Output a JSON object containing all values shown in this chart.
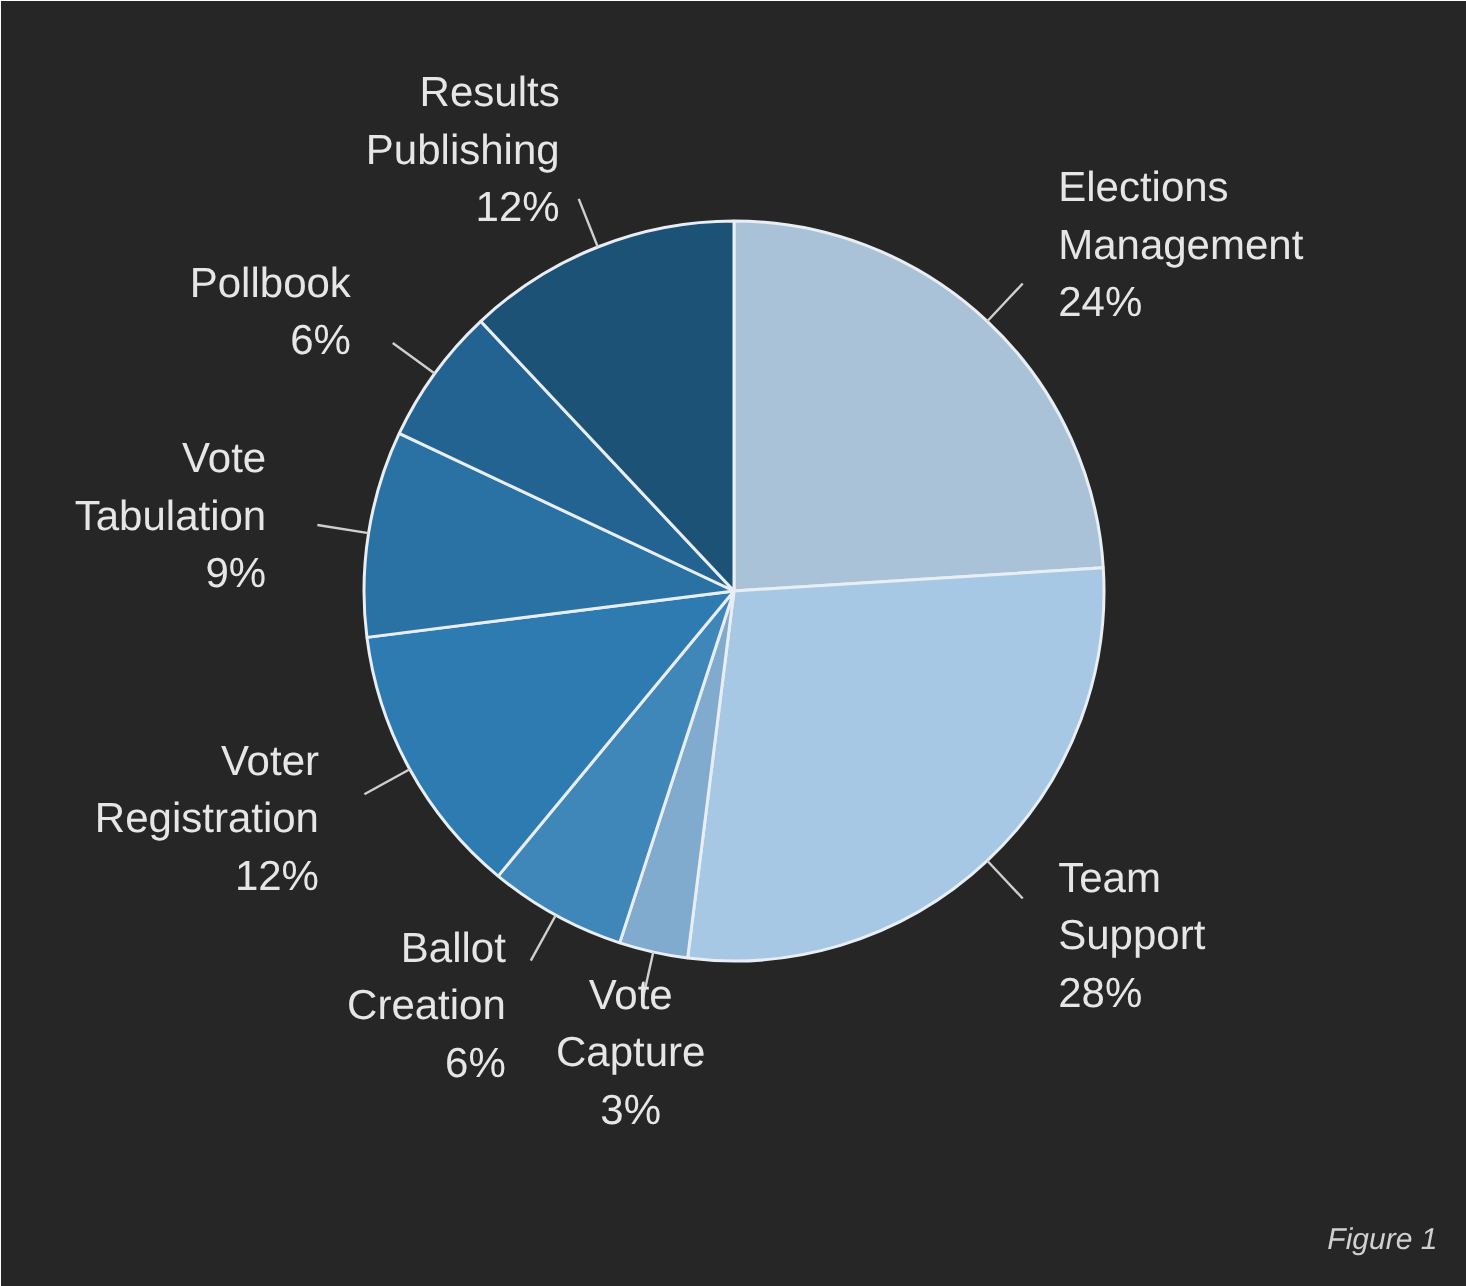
{
  "chart_data": {
    "type": "pie",
    "categories": [
      "Elections Management",
      "Team Support",
      "Vote Capture",
      "Ballot Creation",
      "Voter Registration",
      "Vote Tabulation",
      "Pollbook",
      "Results Publishing"
    ],
    "values": [
      24,
      28,
      3,
      6,
      12,
      9,
      6,
      12
    ],
    "value_labels": [
      "24%",
      "28%",
      "3%",
      "6%",
      "12%",
      "9%",
      "6%",
      "12%"
    ],
    "colors": [
      "#a9c2d8",
      "#a6c8e4",
      "#80abcf",
      "#3e87b8",
      "#2d7bb1",
      "#2a72a3",
      "#226392",
      "#1d5277"
    ],
    "annotations": [
      "Figure 1"
    ]
  }
}
